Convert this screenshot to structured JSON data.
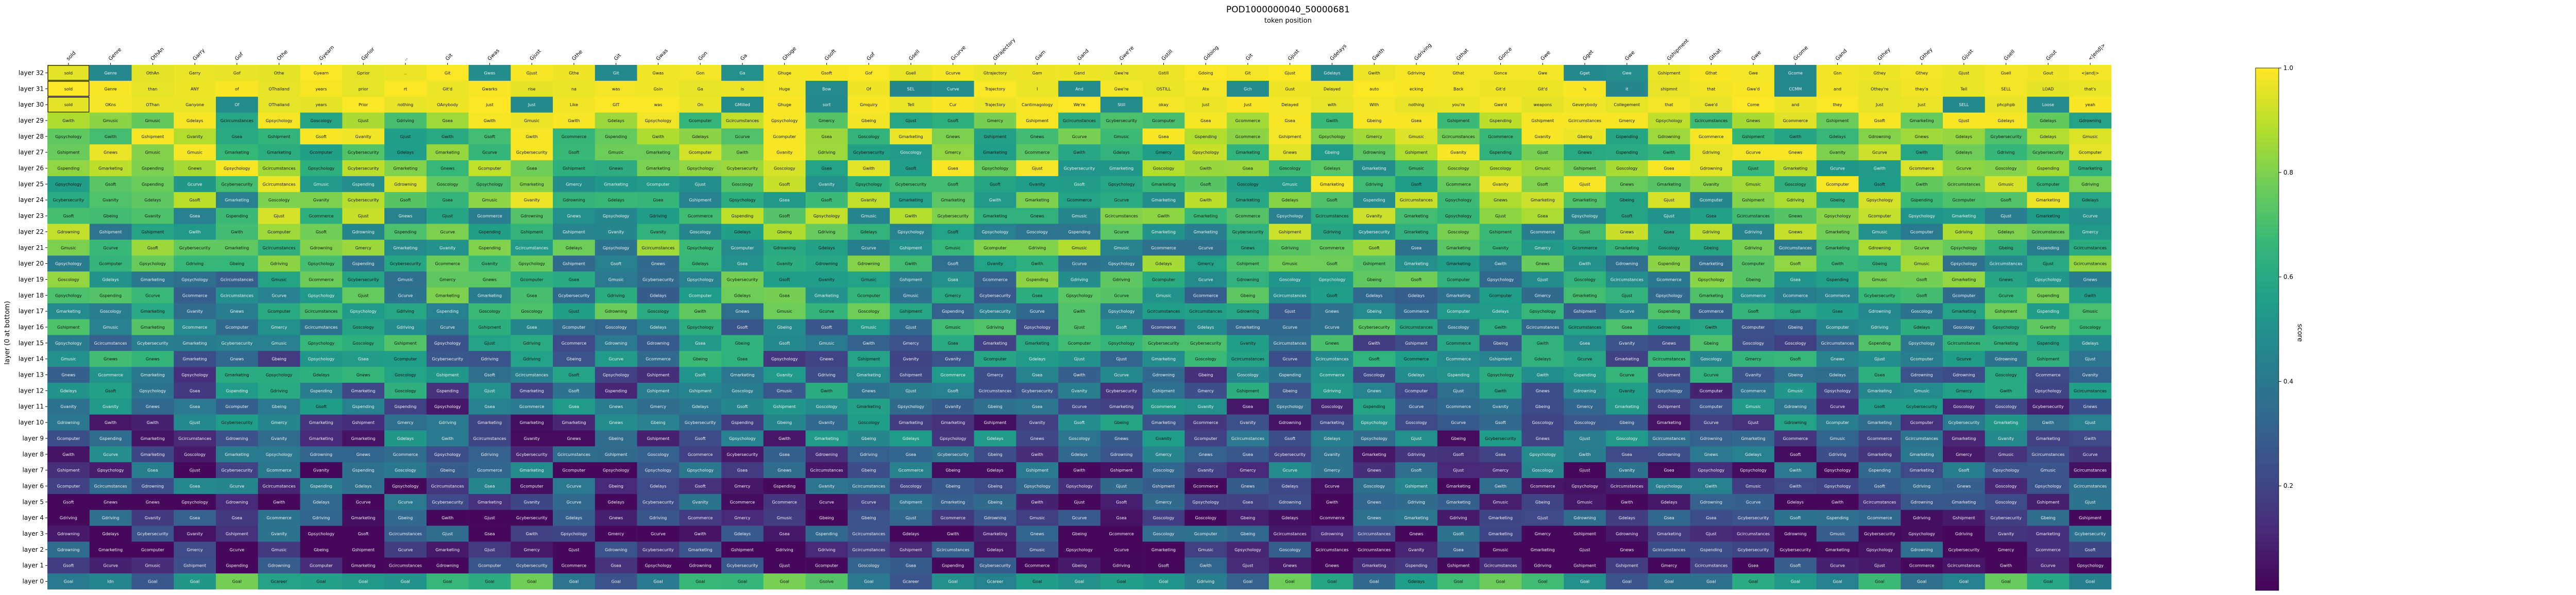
{
  "chart_data": {
    "type": "heatmap",
    "title": "POD1000000040_50000681",
    "xlabel": "token position",
    "ylabel": "layer (0 at bottom)",
    "colorbar_label": "score",
    "colorbar_ticks": [
      0.2,
      0.4,
      0.6,
      0.8,
      1.0
    ],
    "vmin": 0.0,
    "vmax": 1.0,
    "layers": [
      "layer 32",
      "layer 31",
      "layer 30",
      "layer 29",
      "layer 28",
      "layer 27",
      "layer 26",
      "layer 25",
      "layer 24",
      "layer 23",
      "layer 22",
      "layer 21",
      "layer 20",
      "layer 19",
      "layer 18",
      "layer 17",
      "layer 16",
      "layer 15",
      "layer 14",
      "layer 13",
      "layer 12",
      "layer 11",
      "layer 10",
      "layer 9",
      "layer 8",
      "layer 7",
      "layer 6",
      "layer 5",
      "layer 4",
      "layer 3",
      "layer 2",
      "layer 1",
      "layer 0"
    ],
    "tokens": [
      "sold",
      "Genre",
      "OthAn",
      "Garry",
      "Gof",
      "Othe",
      "Gyearn",
      "Gprior",
      "..",
      "Git",
      "Gwas",
      "Gjust",
      "Gthe",
      "Git",
      "Gwas",
      "Gon",
      "Ga",
      "Ghuge",
      "Gsoft",
      "Gof",
      "Gsell",
      "Gcurve",
      "Gtrajectory",
      "Gam",
      "Gand",
      "Gwe're",
      "Gstill",
      "Gdoing",
      "Git",
      "Gjust",
      "Gdelays",
      "Gwith",
      "Gdriving",
      "Gthat",
      "Gonce",
      "Gwe",
      "Gget",
      "Gwe",
      "Gshipment",
      "Gthat",
      "Gwe",
      "Gcome",
      "Gand",
      "Gthey",
      "Gthey",
      "Gjust",
      "Gsell",
      "Gout",
      "<|end|>"
    ],
    "top_rows": {
      "layer 32": [
        "sold",
        "Genre",
        "OthAn",
        "Garry",
        "Gof",
        "Othe",
        "Gyearn",
        "Gprior",
        "..",
        "Git",
        "Gwas",
        "Gjust",
        "Gthe",
        "Git",
        "Gwas",
        "Gon",
        "Ga",
        "Ghuge",
        "Gsoft",
        "Gof",
        "Gsell",
        "Gcurve",
        "Gtrajectory",
        "Gam",
        "Gand",
        "Gwe're",
        "Gstill",
        "Gdoing",
        "Git",
        "Gjust",
        "Gdelays",
        "Gwith",
        "Gdriving",
        "Gthat",
        "Gonce",
        "Gwe",
        "Gget",
        "Gwe",
        "Gshipment",
        "Gthat",
        "Gwe",
        "Gcome",
        "Gsn",
        "Gthey",
        "Gthey",
        "Gjust",
        "Gsell",
        "Gout",
        "<|end|>"
      ],
      "layer 31": [
        "sold",
        "Genre",
        "than",
        "ANY",
        "of",
        "OThailand",
        "years",
        "prior",
        "rt",
        "Git'd",
        "Gwarks",
        "rise",
        "na",
        "was",
        "Gsin",
        "Ga",
        "is",
        "Huge",
        "Bow",
        "Of",
        "SEL",
        "Curve",
        "Trajectory",
        "I",
        "And",
        "Gwe're",
        "OSTILL",
        "Ate",
        "Gch",
        "Gust",
        "Delayed",
        "auto",
        "ecking",
        "Back",
        "Git'd",
        "Git'd",
        "'s",
        "it",
        "shipmnt",
        "that",
        "Gwe'd",
        "CCMM",
        "and",
        "Othey're",
        "they'a",
        "Tell",
        "SELL",
        "LOAD",
        "that's"
      ],
      "layer 30": [
        "sold",
        "OKns",
        "OThan",
        "Ganyone",
        "Of",
        "OThailand",
        "years",
        "Prior",
        "nothing",
        "OAnybody",
        "just",
        "Just",
        "Like",
        "GIT",
        "was",
        "On",
        "GMilled",
        "Ghuge",
        "sort",
        "Gmquiry",
        "Tell",
        "Cur",
        "Trajectory",
        "Cantimagology",
        "We're",
        "Still",
        "okay",
        "just",
        "Just",
        "Delayed",
        "with",
        "With",
        "nothing",
        "you're",
        "Gwe'd",
        "weapons",
        "Geverybody",
        "Collegement",
        "that",
        "Gwe'd",
        "Come",
        "and",
        "they",
        "Just",
        "Just",
        "SELL",
        "phcphpb",
        "Loose",
        "yeah"
      ]
    },
    "fill_words": [
      "Goscology",
      "Gmarketing",
      "Gpsychology",
      "Gcybersecurity",
      "Gcomputer",
      "Gnews",
      "Gmusic",
      "Gbeing",
      "Gjust",
      "Gmarketing",
      "Gcircumstances",
      "Gspending",
      "Gvanity",
      "Gcurve",
      "Gsoft",
      "Gsea",
      "Gmercy",
      "Gpsychology",
      "Gdelays",
      "Gwith",
      "Gdriving",
      "Gcommerce",
      "Gdrowning",
      "Gshipment"
    ],
    "bottom_row": [
      "Goal",
      "Idn",
      "Goal",
      "Goal",
      "Goal",
      "Gcareer",
      "Goal",
      "Goal",
      "Goal",
      "Goal",
      "Goal",
      "Goal",
      "Goal",
      "Goal",
      "Goal",
      "Goal",
      "Goal",
      "Goal",
      "Gsolve",
      "Goal",
      "Gcareer",
      "Goal",
      "Gcareer",
      "Goal",
      "Goal",
      "Goal",
      "Goal",
      "Gdriving",
      "Goal",
      "Goal",
      "Goal",
      "Goal",
      "Gdelays",
      "Goal",
      "Goal",
      "Goal",
      "Goal",
      "Goal",
      "Goal",
      "Goal",
      "Goal",
      "Goal",
      "Goal",
      "Goal",
      "Goal",
      "Goal",
      "Goal",
      "Goal",
      "Goal"
    ]
  }
}
